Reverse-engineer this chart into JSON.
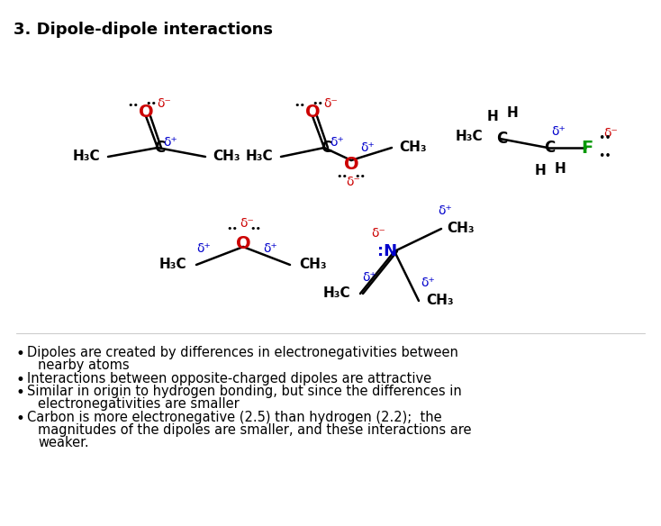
{
  "title": "3. Dipole-dipole interactions",
  "title_fontsize": 13,
  "background_color": "#ffffff",
  "black": "#000000",
  "red": "#cc0000",
  "blue": "#0000cc",
  "green": "#009900",
  "bullet_points": [
    "Dipoles are created by differences in electronegativities between",
    "nearby atoms",
    "Interactions between opposite-charged dipoles are attractive",
    "Similar in origin to hydrogen bonding, but since the differences in",
    "electronegativities are smaller",
    "Carbon is more electronegative (2.5) than hydrogen (2.2);  the",
    "magnitudes of the dipoles are smaller, and these interactions are",
    "weaker."
  ]
}
